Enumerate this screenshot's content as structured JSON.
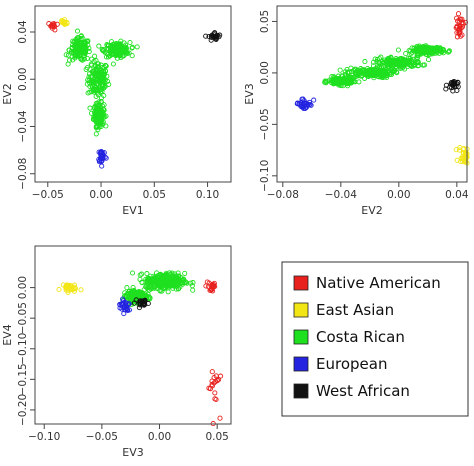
{
  "colors": {
    "native_american": "#e8211f",
    "east_asian": "#f2e615",
    "costa_rican": "#1fe01f",
    "european": "#2323e0",
    "west_african": "#111111"
  },
  "legend": {
    "position": "bottom-right",
    "items": [
      {
        "label": "Native American",
        "color": "#e8211f"
      },
      {
        "label": "East Asian",
        "color": "#f2e615"
      },
      {
        "label": "Costa Rican",
        "color": "#1fe01f"
      },
      {
        "label": "European",
        "color": "#2323e0"
      },
      {
        "label": "West African",
        "color": "#111111"
      }
    ]
  },
  "chart_data": [
    {
      "type": "scatter",
      "xlabel": "EV1",
      "ylabel": "EV2",
      "xlim": [
        -0.062,
        0.122
      ],
      "ylim": [
        -0.087,
        0.062
      ],
      "xticks": [
        -0.05,
        0.0,
        0.05,
        0.1
      ],
      "xtick_labels": [
        "−0.05",
        "0.00",
        "0.05",
        "0.10"
      ],
      "yticks": [
        -0.08,
        -0.04,
        0.0,
        0.04
      ],
      "ytick_labels": [
        "−0.08",
        "−0.04",
        "0.00",
        "0.04"
      ],
      "grid": false,
      "series": [
        {
          "group": "native_american",
          "n": 14,
          "clusters": [
            {
              "center": [
                -0.045,
                0.045
              ],
              "spread": [
                0.004,
                0.003
              ]
            }
          ]
        },
        {
          "group": "east_asian",
          "n": 16,
          "clusters": [
            {
              "center": [
                -0.035,
                0.048
              ],
              "spread": [
                0.003,
                0.003
              ]
            }
          ]
        },
        {
          "group": "costa_rican",
          "n": 600,
          "clusters": [
            {
              "center": [
                -0.003,
                0.0
              ],
              "spread": [
                0.008,
                0.013
              ]
            },
            {
              "center": [
                -0.002,
                -0.03
              ],
              "spread": [
                0.004,
                0.008
              ]
            },
            {
              "center": [
                -0.02,
                0.025
              ],
              "spread": [
                0.008,
                0.008
              ]
            },
            {
              "center": [
                0.015,
                0.025
              ],
              "spread": [
                0.01,
                0.005
              ]
            }
          ]
        },
        {
          "group": "european",
          "n": 30,
          "clusters": [
            {
              "center": [
                0.001,
                -0.065
              ],
              "spread": [
                0.003,
                0.005
              ]
            }
          ]
        },
        {
          "group": "west_african",
          "n": 24,
          "clusters": [
            {
              "center": [
                0.107,
                0.036
              ],
              "spread": [
                0.005,
                0.003
              ]
            }
          ]
        }
      ]
    },
    {
      "type": "scatter",
      "xlabel": "EV2",
      "ylabel": "EV3",
      "xlim": [
        -0.084,
        0.047
      ],
      "ylim": [
        -0.106,
        0.065
      ],
      "xticks": [
        -0.08,
        -0.04,
        0.0,
        0.04
      ],
      "xtick_labels": [
        "−0.08",
        "−0.04",
        "0.00",
        "0.04"
      ],
      "yticks": [
        -0.1,
        -0.05,
        0.0,
        0.05
      ],
      "ytick_labels": [
        "−0.10",
        "−0.05",
        "0.00",
        "0.05"
      ],
      "grid": false,
      "series": [
        {
          "group": "native_american",
          "n": 28,
          "clusters": [
            {
              "center": [
                0.042,
                0.045
              ],
              "spread": [
                0.003,
                0.008
              ]
            }
          ]
        },
        {
          "group": "east_asian",
          "n": 30,
          "clusters": [
            {
              "center": [
                0.045,
                -0.08
              ],
              "spread": [
                0.003,
                0.007
              ]
            }
          ]
        },
        {
          "group": "costa_rican",
          "n": 700,
          "clusters": [
            {
              "center": [
                -0.02,
                0.0
              ],
              "spread": [
                0.013,
                0.004
              ]
            },
            {
              "center": [
                0.0,
                0.01
              ],
              "spread": [
                0.013,
                0.004
              ]
            },
            {
              "center": [
                0.02,
                0.022
              ],
              "spread": [
                0.009,
                0.003
              ]
            },
            {
              "center": [
                -0.04,
                -0.008
              ],
              "spread": [
                0.007,
                0.003
              ]
            }
          ]
        },
        {
          "group": "european",
          "n": 32,
          "clusters": [
            {
              "center": [
                -0.065,
                -0.03
              ],
              "spread": [
                0.005,
                0.005
              ]
            }
          ]
        },
        {
          "group": "west_african",
          "n": 24,
          "clusters": [
            {
              "center": [
                0.037,
                -0.012
              ],
              "spread": [
                0.003,
                0.004
              ]
            }
          ]
        }
      ]
    },
    {
      "type": "scatter",
      "xlabel": "EV3",
      "ylabel": "EV4",
      "xlim": [
        -0.108,
        0.062
      ],
      "ylim": [
        -0.223,
        0.068
      ],
      "xticks": [
        -0.1,
        -0.05,
        0.0,
        0.05
      ],
      "xtick_labels": [
        "−0.10",
        "−0.05",
        "0.00",
        "0.05"
      ],
      "yticks": [
        -0.2,
        -0.15,
        -0.1,
        -0.05,
        0.0
      ],
      "ytick_labels": [
        "−0.20",
        "−0.15",
        "−0.10",
        "−0.05",
        "0.00"
      ],
      "grid": false,
      "series": [
        {
          "group": "native_american",
          "n": 40,
          "clusters": [
            {
              "center": [
                0.045,
                0.002
              ],
              "spread": [
                0.004,
                0.009
              ]
            },
            {
              "center": [
                0.047,
                -0.16
              ],
              "spread": [
                0.004,
                0.035
              ]
            }
          ]
        },
        {
          "group": "east_asian",
          "n": 30,
          "clusters": [
            {
              "center": [
                -0.08,
                0.0
              ],
              "spread": [
                0.006,
                0.006
              ]
            }
          ]
        },
        {
          "group": "costa_rican",
          "n": 650,
          "clusters": [
            {
              "center": [
                0.005,
                0.01
              ],
              "spread": [
                0.014,
                0.011
              ]
            },
            {
              "center": [
                -0.02,
                -0.015
              ],
              "spread": [
                0.007,
                0.007
              ]
            }
          ]
        },
        {
          "group": "european",
          "n": 30,
          "clusters": [
            {
              "center": [
                -0.03,
                -0.03
              ],
              "spread": [
                0.005,
                0.009
              ]
            }
          ]
        },
        {
          "group": "west_african",
          "n": 22,
          "clusters": [
            {
              "center": [
                -0.015,
                -0.025
              ],
              "spread": [
                0.005,
                0.006
              ]
            }
          ]
        }
      ]
    }
  ]
}
